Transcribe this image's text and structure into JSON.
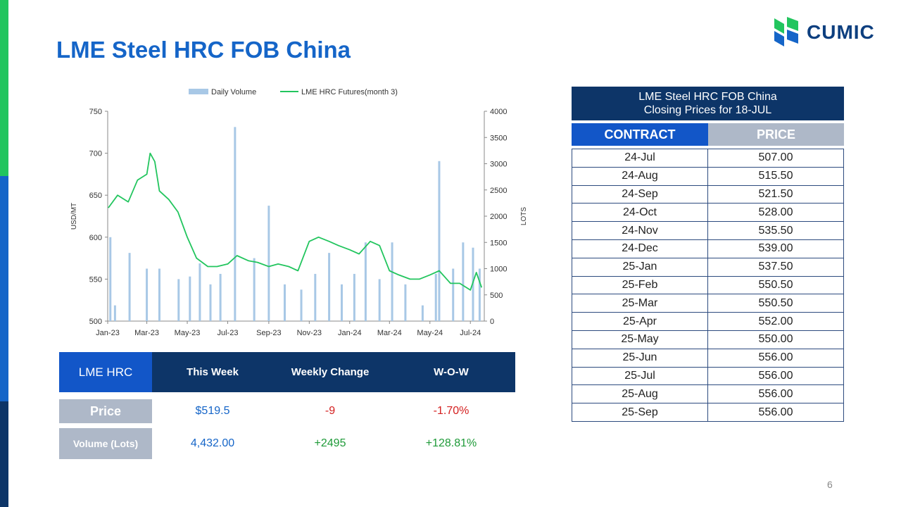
{
  "brand": {
    "name": "CUMIC"
  },
  "title": "LME Steel HRC FOB China",
  "page_number": "6",
  "colors": {
    "title": "#1565c8",
    "navy": "#0d3568",
    "blue": "#1256c8",
    "gray": "#aeb8c8",
    "volume": "#a8c8e6",
    "line": "#22c55e"
  },
  "chart_data": {
    "type": "bar+line",
    "x_tick_labels": [
      "Jan-23",
      "Mar-23",
      "May-23",
      "Jul-23",
      "Sep-23",
      "Nov-23",
      "Jan-24",
      "Mar-24",
      "May-24",
      "Jul-24"
    ],
    "y_left": {
      "label": "USD/MT",
      "range": [
        500,
        750
      ],
      "ticks": [
        500,
        550,
        600,
        650,
        700,
        750
      ]
    },
    "y_right": {
      "label": "LOTS",
      "range": [
        0,
        4000
      ],
      "ticks": [
        0,
        500,
        1000,
        1500,
        2000,
        2500,
        3000,
        3500,
        4000
      ]
    },
    "legend": [
      "Daily Volume",
      "LME HRC Futures(month 3)"
    ],
    "legend_position": "top",
    "series": [
      {
        "name": "LME HRC Futures(month 3)",
        "type": "line",
        "axis": "left",
        "x": [
          "2023-01-02",
          "2023-01-16",
          "2023-02-01",
          "2023-02-15",
          "2023-03-01",
          "2023-03-06",
          "2023-03-13",
          "2023-03-20",
          "2023-03-27",
          "2023-04-03",
          "2023-04-17",
          "2023-05-01",
          "2023-05-15",
          "2023-06-01",
          "2023-06-15",
          "2023-07-01",
          "2023-07-15",
          "2023-08-01",
          "2023-08-15",
          "2023-09-01",
          "2023-09-15",
          "2023-10-01",
          "2023-10-15",
          "2023-11-01",
          "2023-11-15",
          "2023-12-01",
          "2023-12-15",
          "2024-01-01",
          "2024-01-15",
          "2024-02-01",
          "2024-02-15",
          "2024-03-01",
          "2024-03-15",
          "2024-04-01",
          "2024-04-15",
          "2024-05-01",
          "2024-05-15",
          "2024-06-01",
          "2024-06-15",
          "2024-07-01",
          "2024-07-10",
          "2024-07-18"
        ],
        "values": [
          635,
          650,
          642,
          668,
          675,
          700,
          690,
          655,
          650,
          645,
          630,
          600,
          575,
          565,
          565,
          568,
          578,
          572,
          570,
          565,
          568,
          565,
          560,
          595,
          600,
          595,
          590,
          585,
          580,
          595,
          590,
          560,
          555,
          550,
          550,
          555,
          560,
          545,
          545,
          537,
          558,
          540
        ]
      },
      {
        "name": "Daily Volume",
        "type": "bar",
        "axis": "right",
        "x": [
          "2023-01-05",
          "2023-01-12",
          "2023-02-03",
          "2023-03-01",
          "2023-03-20",
          "2023-04-18",
          "2023-05-05",
          "2023-05-20",
          "2023-06-05",
          "2023-06-20",
          "2023-07-12",
          "2023-08-10",
          "2023-09-01",
          "2023-09-25",
          "2023-10-20",
          "2023-11-10",
          "2023-12-01",
          "2023-12-20",
          "2024-01-08",
          "2024-01-25",
          "2024-02-15",
          "2024-03-05",
          "2024-03-25",
          "2024-04-20",
          "2024-05-10",
          "2024-05-15",
          "2024-06-05",
          "2024-06-20",
          "2024-07-05",
          "2024-07-15"
        ],
        "values": [
          1600,
          300,
          1300,
          1000,
          1000,
          800,
          850,
          1100,
          700,
          900,
          3700,
          1200,
          2200,
          700,
          600,
          900,
          1300,
          700,
          900,
          1500,
          800,
          1500,
          700,
          300,
          900,
          3050,
          1000,
          1500,
          1400,
          1000
        ]
      }
    ]
  },
  "summary_table": {
    "corner": "LME HRC",
    "headers": [
      "This Week",
      "Weekly Change",
      "W-O-W"
    ],
    "rows": [
      {
        "label": "Price",
        "values": [
          "$519.5",
          "-9",
          "-1.70%"
        ]
      },
      {
        "label": "Volume (Lots)",
        "values": [
          "4,432.00",
          "+2495",
          "+128.81%"
        ]
      }
    ]
  },
  "prices_table": {
    "title_line1": "LME Steel HRC FOB China",
    "title_line2": "Closing Prices for 18-JUL",
    "col_contract": "CONTRACT",
    "col_price": "PRICE",
    "rows": [
      {
        "contract": "24-Jul",
        "price": "507.00"
      },
      {
        "contract": "24-Aug",
        "price": "515.50"
      },
      {
        "contract": "24-Sep",
        "price": "521.50"
      },
      {
        "contract": "24-Oct",
        "price": "528.00"
      },
      {
        "contract": "24-Nov",
        "price": "535.50"
      },
      {
        "contract": "24-Dec",
        "price": "539.00"
      },
      {
        "contract": "25-Jan",
        "price": "537.50"
      },
      {
        "contract": "25-Feb",
        "price": "550.50"
      },
      {
        "contract": "25-Mar",
        "price": "550.50"
      },
      {
        "contract": "25-Apr",
        "price": "552.00"
      },
      {
        "contract": "25-May",
        "price": "550.00"
      },
      {
        "contract": "25-Jun",
        "price": "556.00"
      },
      {
        "contract": "25-Jul",
        "price": "556.00"
      },
      {
        "contract": "25-Aug",
        "price": "556.00"
      },
      {
        "contract": "25-Sep",
        "price": "556.00"
      }
    ]
  }
}
